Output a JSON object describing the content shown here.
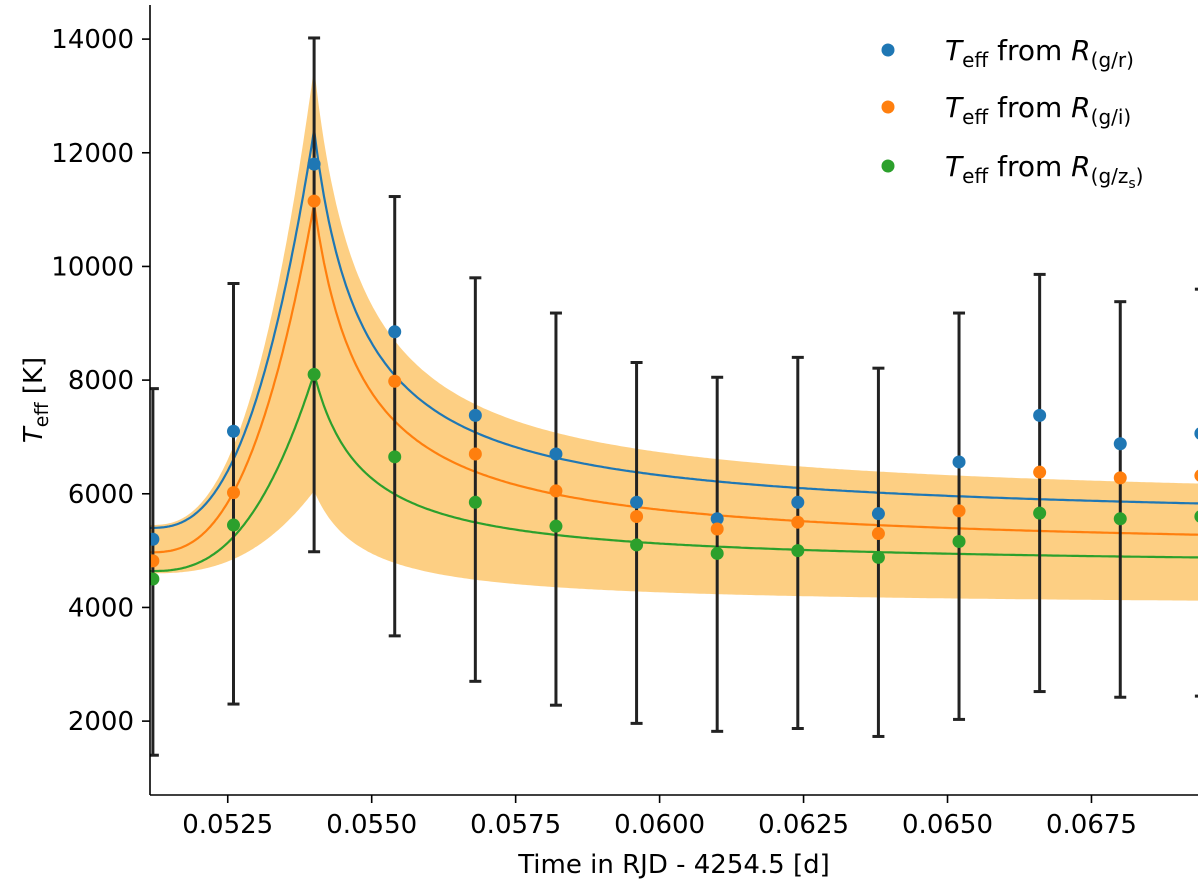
{
  "chart_data": {
    "type": "scatter",
    "xlabel": "Time in RJD - 4254.5  [d]",
    "ylabel": {
      "base": "T",
      "sub": "eff",
      "unit": " [K]"
    },
    "xlim": [
      0.05115,
      0.06935
    ],
    "ylim": [
      700,
      14600
    ],
    "xticks": [
      {
        "value": 0.0525,
        "label": "0.0525"
      },
      {
        "value": 0.055,
        "label": "0.0550"
      },
      {
        "value": 0.0575,
        "label": "0.0575"
      },
      {
        "value": 0.06,
        "label": "0.0600"
      },
      {
        "value": 0.0625,
        "label": "0.0625"
      },
      {
        "value": 0.065,
        "label": "0.0650"
      },
      {
        "value": 0.0675,
        "label": "0.0675"
      }
    ],
    "yticks": [
      {
        "value": 2000,
        "label": "2000"
      },
      {
        "value": 4000,
        "label": "4000"
      },
      {
        "value": 6000,
        "label": "6000"
      },
      {
        "value": 8000,
        "label": "8000"
      },
      {
        "value": 10000,
        "label": "10000"
      },
      {
        "value": 12000,
        "label": "12000"
      },
      {
        "value": 14000,
        "label": "14000"
      }
    ],
    "x": [
      0.0512,
      0.0526,
      0.054,
      0.0554,
      0.0568,
      0.0582,
      0.0596,
      0.061,
      0.0624,
      0.0638,
      0.0652,
      0.0666,
      0.068,
      0.0694
    ],
    "series": [
      {
        "name": "T_eff from R_(g/r)",
        "color": "#1f77b4",
        "values": [
          5200,
          7100,
          11800,
          8850,
          7380,
          6700,
          5850,
          5560,
          5850,
          5650,
          6560,
          7380,
          6880,
          7060
        ],
        "fit_peak": 12400,
        "fit_base": 5400,
        "fit_floor": 5430,
        "fit_end": 5830
      },
      {
        "name": "T_eff from R_(g/i)",
        "color": "#ff7f0e",
        "values": [
          4820,
          6020,
          11150,
          7980,
          6700,
          6050,
          5600,
          5380,
          5500,
          5300,
          5700,
          6380,
          6280,
          6320
        ],
        "fit_peak": 11100,
        "fit_base": 4970,
        "fit_floor": 4980,
        "fit_end": 5280
      },
      {
        "name": "T_eff from R_(g/z_s)",
        "color": "#2ca02c",
        "values": [
          4500,
          5450,
          8100,
          6650,
          5850,
          5430,
          5100,
          4950,
          5000,
          4880,
          5160,
          5660,
          5560,
          5600
        ],
        "fit_peak": 8120,
        "fit_base": 4640,
        "fit_floor": 4650,
        "fit_end": 4880
      }
    ],
    "errorbars": [
      {
        "x": 0.0512,
        "low": 1400,
        "high": 7850
      },
      {
        "x": 0.0526,
        "low": 2300,
        "high": 9700
      },
      {
        "x": 0.054,
        "low": 4980,
        "high": 14020
      },
      {
        "x": 0.0554,
        "low": 3500,
        "high": 11230
      },
      {
        "x": 0.0568,
        "low": 2700,
        "high": 9800
      },
      {
        "x": 0.0582,
        "low": 2280,
        "high": 9180
      },
      {
        "x": 0.0596,
        "low": 1960,
        "high": 8310
      },
      {
        "x": 0.061,
        "low": 1820,
        "high": 8050
      },
      {
        "x": 0.0624,
        "low": 1870,
        "high": 8400
      },
      {
        "x": 0.0638,
        "low": 1730,
        "high": 8210
      },
      {
        "x": 0.0652,
        "low": 2030,
        "high": 9180
      },
      {
        "x": 0.0666,
        "low": 2520,
        "high": 9860
      },
      {
        "x": 0.068,
        "low": 2420,
        "high": 9380
      },
      {
        "x": 0.0694,
        "low": 2440,
        "high": 9600
      }
    ],
    "band": {
      "color": "#fdcf83",
      "peak_high": 13500,
      "peak_low": 6050,
      "left_high": 5450,
      "left_low": 4600,
      "end_high": 6180,
      "end_low": 4120
    },
    "legend": {
      "position": "top-right",
      "entries": [
        {
          "base": "T",
          "sub": "eff",
          "mid": " from ",
          "rbase": "R",
          "rsub": "(g/r)"
        },
        {
          "base": "T",
          "sub": "eff",
          "mid": " from ",
          "rbase": "R",
          "rsub": "(g/i)"
        },
        {
          "base": "T",
          "sub": "eff",
          "mid": " from ",
          "rbase": "R",
          "rsub": "(g/z",
          "rsubsub": "s",
          "rclose": ")"
        }
      ]
    }
  }
}
